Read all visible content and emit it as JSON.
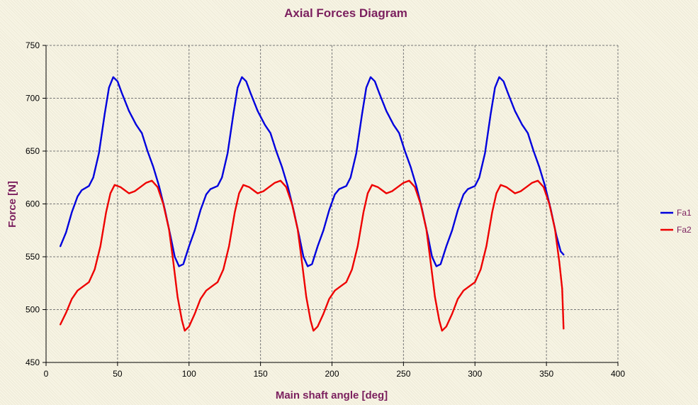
{
  "chart_data": {
    "type": "line",
    "title": "Axial Forces Diagram",
    "xlabel": "Main shaft angle [deg]",
    "ylabel": "Force [N]",
    "xlim": [
      0,
      400
    ],
    "ylim": [
      450,
      750
    ],
    "x_ticks": [
      0,
      50,
      100,
      150,
      200,
      250,
      300,
      350,
      400
    ],
    "y_ticks": [
      450,
      500,
      550,
      600,
      650,
      700,
      750
    ],
    "grid": true,
    "legend_position": "right",
    "title_color": "#7b1f5e",
    "series": [
      {
        "name": "Fa1",
        "color": "#0000dd",
        "points": [
          [
            10,
            560
          ],
          [
            14,
            573
          ],
          [
            18,
            592
          ],
          [
            22,
            607
          ],
          [
            25,
            613
          ],
          [
            30,
            617
          ],
          [
            33,
            625
          ],
          [
            37,
            648
          ],
          [
            41,
            685
          ],
          [
            44,
            710
          ],
          [
            47,
            720
          ],
          [
            50,
            716
          ],
          [
            53,
            705
          ],
          [
            58,
            688
          ],
          [
            63,
            675
          ],
          [
            67,
            667
          ],
          [
            71,
            650
          ],
          [
            75,
            635
          ],
          [
            79,
            617
          ],
          [
            83,
            595
          ],
          [
            87,
            570
          ],
          [
            90,
            550
          ],
          [
            93,
            541
          ],
          [
            96,
            543
          ],
          [
            100,
            560
          ],
          [
            104,
            575
          ],
          [
            108,
            594
          ],
          [
            112,
            609
          ],
          [
            115,
            614
          ],
          [
            120,
            617
          ],
          [
            123,
            625
          ],
          [
            127,
            648
          ],
          [
            131,
            685
          ],
          [
            134,
            710
          ],
          [
            137,
            720
          ],
          [
            140,
            716
          ],
          [
            143,
            705
          ],
          [
            148,
            688
          ],
          [
            153,
            675
          ],
          [
            157,
            667
          ],
          [
            161,
            650
          ],
          [
            165,
            635
          ],
          [
            169,
            617
          ],
          [
            173,
            595
          ],
          [
            177,
            570
          ],
          [
            180,
            550
          ],
          [
            183,
            541
          ],
          [
            186,
            543
          ],
          [
            190,
            560
          ],
          [
            194,
            575
          ],
          [
            198,
            594
          ],
          [
            202,
            609
          ],
          [
            205,
            614
          ],
          [
            210,
            617
          ],
          [
            213,
            625
          ],
          [
            217,
            648
          ],
          [
            221,
            685
          ],
          [
            224,
            710
          ],
          [
            227,
            720
          ],
          [
            230,
            716
          ],
          [
            233,
            705
          ],
          [
            238,
            688
          ],
          [
            243,
            675
          ],
          [
            247,
            667
          ],
          [
            251,
            650
          ],
          [
            255,
            635
          ],
          [
            259,
            617
          ],
          [
            263,
            595
          ],
          [
            267,
            570
          ],
          [
            270,
            550
          ],
          [
            273,
            541
          ],
          [
            276,
            543
          ],
          [
            280,
            560
          ],
          [
            284,
            575
          ],
          [
            288,
            594
          ],
          [
            292,
            609
          ],
          [
            295,
            614
          ],
          [
            300,
            617
          ],
          [
            303,
            625
          ],
          [
            307,
            648
          ],
          [
            311,
            685
          ],
          [
            314,
            710
          ],
          [
            317,
            720
          ],
          [
            320,
            716
          ],
          [
            323,
            705
          ],
          [
            328,
            688
          ],
          [
            333,
            675
          ],
          [
            337,
            667
          ],
          [
            341,
            650
          ],
          [
            345,
            635
          ],
          [
            349,
            617
          ],
          [
            353,
            595
          ],
          [
            357,
            570
          ],
          [
            360,
            555
          ],
          [
            362,
            552
          ]
        ]
      },
      {
        "name": "Fa2",
        "color": "#ee0000",
        "points": [
          [
            10,
            486
          ],
          [
            14,
            497
          ],
          [
            18,
            510
          ],
          [
            22,
            518
          ],
          [
            26,
            522
          ],
          [
            30,
            526
          ],
          [
            34,
            538
          ],
          [
            38,
            560
          ],
          [
            42,
            592
          ],
          [
            45,
            610
          ],
          [
            48,
            618
          ],
          [
            52,
            616
          ],
          [
            55,
            613
          ],
          [
            58,
            610
          ],
          [
            62,
            612
          ],
          [
            66,
            616
          ],
          [
            70,
            620
          ],
          [
            74,
            622
          ],
          [
            78,
            616
          ],
          [
            82,
            600
          ],
          [
            86,
            576
          ],
          [
            89,
            545
          ],
          [
            92,
            512
          ],
          [
            95,
            490
          ],
          [
            97,
            480
          ],
          [
            100,
            484
          ],
          [
            104,
            496
          ],
          [
            108,
            510
          ],
          [
            112,
            518
          ],
          [
            116,
            522
          ],
          [
            120,
            526
          ],
          [
            124,
            538
          ],
          [
            128,
            560
          ],
          [
            132,
            592
          ],
          [
            135,
            610
          ],
          [
            138,
            618
          ],
          [
            142,
            616
          ],
          [
            145,
            613
          ],
          [
            148,
            610
          ],
          [
            152,
            612
          ],
          [
            156,
            616
          ],
          [
            160,
            620
          ],
          [
            164,
            622
          ],
          [
            168,
            616
          ],
          [
            172,
            600
          ],
          [
            176,
            576
          ],
          [
            179,
            545
          ],
          [
            182,
            512
          ],
          [
            185,
            490
          ],
          [
            187,
            480
          ],
          [
            190,
            484
          ],
          [
            194,
            496
          ],
          [
            198,
            510
          ],
          [
            202,
            518
          ],
          [
            206,
            522
          ],
          [
            210,
            526
          ],
          [
            214,
            538
          ],
          [
            218,
            560
          ],
          [
            222,
            592
          ],
          [
            225,
            610
          ],
          [
            228,
            618
          ],
          [
            232,
            616
          ],
          [
            235,
            613
          ],
          [
            238,
            610
          ],
          [
            242,
            612
          ],
          [
            246,
            616
          ],
          [
            250,
            620
          ],
          [
            254,
            622
          ],
          [
            258,
            616
          ],
          [
            262,
            600
          ],
          [
            266,
            576
          ],
          [
            269,
            545
          ],
          [
            272,
            512
          ],
          [
            275,
            490
          ],
          [
            277,
            480
          ],
          [
            280,
            484
          ],
          [
            284,
            496
          ],
          [
            288,
            510
          ],
          [
            292,
            518
          ],
          [
            296,
            522
          ],
          [
            300,
            526
          ],
          [
            304,
            538
          ],
          [
            308,
            560
          ],
          [
            312,
            592
          ],
          [
            315,
            610
          ],
          [
            318,
            618
          ],
          [
            322,
            616
          ],
          [
            325,
            613
          ],
          [
            328,
            610
          ],
          [
            332,
            612
          ],
          [
            336,
            616
          ],
          [
            340,
            620
          ],
          [
            344,
            622
          ],
          [
            348,
            616
          ],
          [
            352,
            600
          ],
          [
            356,
            576
          ],
          [
            359,
            545
          ],
          [
            361,
            520
          ],
          [
            362,
            482
          ]
        ]
      }
    ]
  }
}
